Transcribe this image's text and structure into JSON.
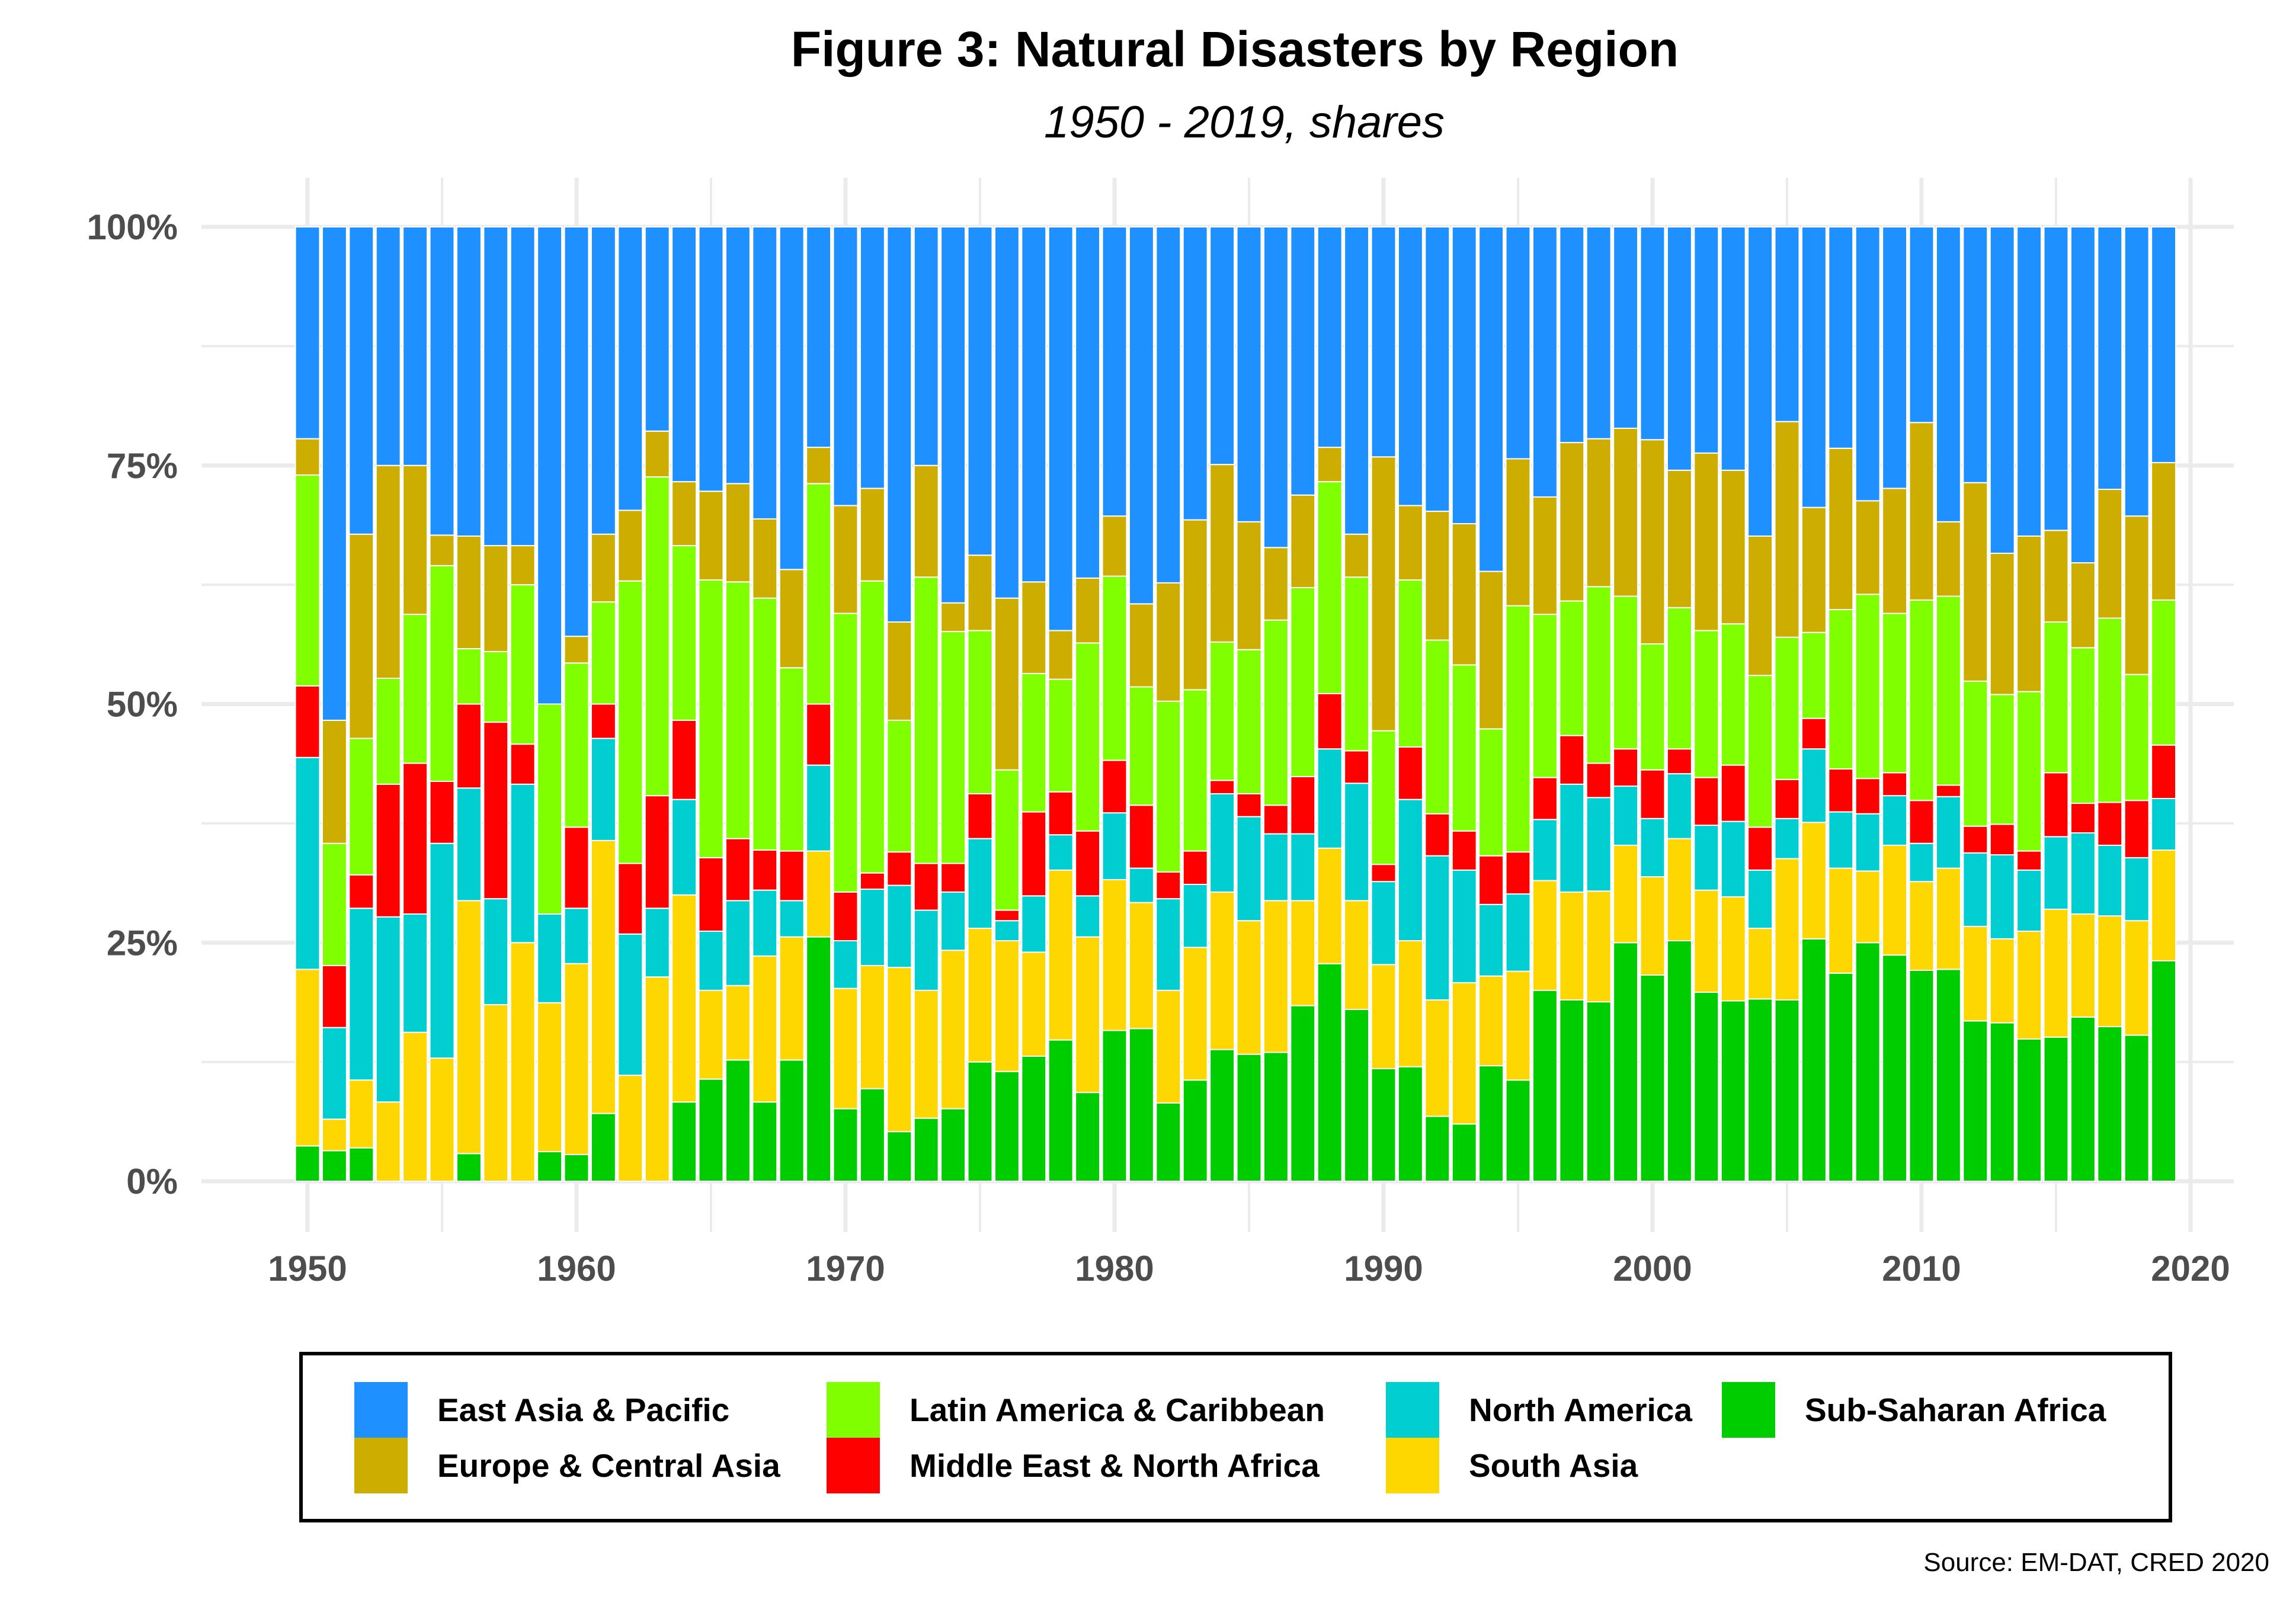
{
  "chart_data": {
    "type": "bar",
    "stacked": true,
    "normalized": true,
    "title": "Figure 3: Natural Disasters by Region",
    "subtitle": "1950 - 2019, shares",
    "xlabel": "",
    "ylabel": "",
    "ylim": [
      0,
      100
    ],
    "xlim": [
      1950,
      2020
    ],
    "x_ticks": [
      "1950",
      "1960",
      "1970",
      "1980",
      "1990",
      "2000",
      "2010",
      "2020"
    ],
    "y_ticks": [
      "0%",
      "25%",
      "50%",
      "75%",
      "100%"
    ],
    "grid": true,
    "legend_position": "bottom",
    "source": "Source: EM-DAT, CRED 2020",
    "legend_order": [
      "East Asia & Pacific",
      "Europe & Central Asia",
      "Latin America & Caribbean",
      "Middle East & North Africa",
      "North America",
      "South Asia",
      "Sub-Saharan Africa"
    ],
    "x": [
      1950,
      1951,
      1952,
      1953,
      1954,
      1955,
      1956,
      1957,
      1958,
      1959,
      1960,
      1961,
      1962,
      1963,
      1964,
      1965,
      1966,
      1967,
      1968,
      1969,
      1970,
      1971,
      1972,
      1973,
      1974,
      1975,
      1976,
      1977,
      1978,
      1979,
      1980,
      1981,
      1982,
      1983,
      1984,
      1985,
      1986,
      1987,
      1988,
      1989,
      1990,
      1991,
      1992,
      1993,
      1994,
      1995,
      1996,
      1997,
      1998,
      1999,
      2000,
      2001,
      2002,
      2003,
      2004,
      2005,
      2006,
      2007,
      2008,
      2009,
      2010,
      2011,
      2012,
      2013,
      2014,
      2015,
      2016,
      2017,
      2018,
      2019
    ],
    "series_stack_order_bottom_to_top": [
      "Sub-Saharan Africa",
      "South Asia",
      "North America",
      "Middle East & North Africa",
      "Latin America & Caribbean",
      "Europe & Central Asia",
      "East Asia & Pacific"
    ],
    "series": [
      {
        "name": "Sub-Saharan Africa",
        "color": "#00CD00",
        "values": [
          3.7,
          3.2,
          3.5,
          0,
          0,
          0,
          2.9,
          0,
          0,
          3.1,
          2.8,
          7.1,
          0,
          0,
          8.3,
          10.7,
          12.7,
          8.3,
          12.7,
          25.6,
          7.6,
          9.7,
          5.2,
          6.6,
          7.6,
          12.5,
          11.5,
          13.1,
          14.8,
          9.3,
          15.8,
          16.0,
          8.2,
          10.6,
          13.8,
          13.3,
          13.5,
          18.4,
          22.8,
          18.0,
          11.8,
          12.0,
          6.8,
          6.0,
          12.1,
          10.6,
          20.0,
          19.0,
          18.8,
          25.0,
          21.6,
          25.2,
          19.8,
          18.9,
          19.1,
          19.0,
          25.4,
          21.8,
          25.0,
          23.7,
          22.1,
          22.2,
          16.8,
          16.6,
          14.9,
          15.1,
          17.2,
          16.2,
          15.3,
          23.1
        ]
      },
      {
        "name": "South Asia",
        "color": "#FFD700",
        "values": [
          18.5,
          3.3,
          7.1,
          8.3,
          15.6,
          12.9,
          26.5,
          18.5,
          25.0,
          15.6,
          20.0,
          28.6,
          11.1,
          21.4,
          21.7,
          9.3,
          7.8,
          15.3,
          12.9,
          9.0,
          12.6,
          12.9,
          17.2,
          13.4,
          16.6,
          14.0,
          13.7,
          10.9,
          17.8,
          16.3,
          15.8,
          13.2,
          11.8,
          13.9,
          16.5,
          14.0,
          15.9,
          11.0,
          12.1,
          11.4,
          10.9,
          13.2,
          12.2,
          14.8,
          9.4,
          11.4,
          11.5,
          11.3,
          11.6,
          10.2,
          10.3,
          10.7,
          10.7,
          10.9,
          7.4,
          14.8,
          12.2,
          11.0,
          7.5,
          11.5,
          9.3,
          10.6,
          9.9,
          8.8,
          11.3,
          13.4,
          10.8,
          11.6,
          12.0,
          11.6
        ]
      },
      {
        "name": "North America",
        "color": "#00CED1",
        "values": [
          22.2,
          9.6,
          18.0,
          19.4,
          12.4,
          22.5,
          11.8,
          11.1,
          16.6,
          9.3,
          5.8,
          10.7,
          14.8,
          7.2,
          10.0,
          6.2,
          8.9,
          6.9,
          3.8,
          9.0,
          5.0,
          8.0,
          8.6,
          8.4,
          6.1,
          9.4,
          2.1,
          5.9,
          3.7,
          4.3,
          7.0,
          3.6,
          9.6,
          6.6,
          10.3,
          10.9,
          7.0,
          7.0,
          10.4,
          12.3,
          8.7,
          14.8,
          15.1,
          11.8,
          7.5,
          8.1,
          6.4,
          11.3,
          9.8,
          6.2,
          6.1,
          6.8,
          6.8,
          7.9,
          6.1,
          4.2,
          7.7,
          5.9,
          6.0,
          5.2,
          4.0,
          7.5,
          7.7,
          8.8,
          6.4,
          7.6,
          8.5,
          7.4,
          6.6,
          5.4
        ]
      },
      {
        "name": "Middle East & North Africa",
        "color": "#FF0000",
        "values": [
          7.5,
          6.5,
          3.5,
          13.9,
          15.8,
          6.5,
          8.8,
          18.5,
          4.2,
          0,
          8.5,
          3.6,
          7.4,
          11.8,
          8.3,
          7.7,
          6.5,
          4.2,
          5.2,
          6.4,
          5.1,
          1.7,
          3.5,
          4.9,
          3.0,
          4.7,
          1.1,
          8.8,
          4.5,
          6.8,
          5.5,
          6.6,
          2.8,
          3.5,
          1.4,
          2.4,
          3.0,
          6.0,
          5.8,
          3.4,
          1.8,
          5.5,
          4.4,
          4.1,
          5.1,
          4.4,
          4.4,
          5.1,
          3.6,
          3.9,
          5.1,
          2.6,
          5.0,
          5.9,
          4.5,
          4.1,
          3.2,
          4.5,
          3.7,
          2.4,
          4.5,
          1.2,
          2.8,
          3.2,
          2.0,
          6.7,
          3.1,
          4.5,
          6.0,
          5.6
        ]
      },
      {
        "name": "Latin America & Caribbean",
        "color": "#7FFF00",
        "values": [
          22.1,
          12.8,
          14.3,
          11.1,
          15.6,
          22.6,
          5.8,
          7.4,
          16.7,
          22.0,
          17.2,
          10.7,
          29.6,
          33.4,
          18.3,
          29.1,
          26.9,
          26.4,
          19.2,
          23.1,
          29.2,
          30.6,
          13.8,
          30.0,
          24.3,
          17.1,
          14.7,
          14.5,
          11.8,
          19.7,
          19.3,
          12.4,
          17.9,
          16.9,
          14.5,
          15.1,
          19.4,
          19.8,
          22.2,
          18.2,
          14.0,
          17.5,
          18.2,
          17.4,
          13.3,
          25.8,
          17.1,
          14.1,
          18.5,
          16.0,
          13.2,
          14.8,
          15.4,
          14.8,
          15.9,
          14.9,
          9.0,
          16.7,
          19.3,
          16.7,
          21.0,
          19.8,
          15.2,
          13.6,
          16.7,
          15.8,
          16.3,
          19.3,
          13.2,
          15.2
        ]
      },
      {
        "name": "Europe & Central Asia",
        "color": "#CDAD00",
        "values": [
          3.8,
          12.9,
          21.4,
          22.3,
          15.6,
          3.2,
          11.8,
          11.1,
          4.1,
          0,
          2.8,
          7.1,
          7.4,
          4.8,
          6.7,
          9.3,
          10.3,
          8.3,
          10.3,
          3.8,
          11.3,
          9.7,
          10.3,
          11.7,
          3.0,
          7.9,
          18.0,
          9.6,
          5.1,
          6.8,
          6.3,
          8.7,
          12.4,
          17.8,
          18.6,
          13.4,
          7.6,
          9.7,
          3.6,
          4.5,
          28.7,
          7.8,
          13.5,
          14.8,
          16.5,
          15.4,
          12.3,
          16.6,
          15.5,
          17.6,
          21.4,
          14.4,
          18.6,
          16.1,
          14.6,
          22.6,
          13.1,
          16.9,
          9.8,
          13.1,
          18.6,
          7.8,
          20.8,
          14.8,
          16.3,
          9.6,
          8.9,
          13.5,
          16.6,
          14.4
        ]
      },
      {
        "name": "East Asia & Pacific",
        "color": "#1E90FF",
        "values": [
          22.2,
          51.7,
          32.2,
          25.0,
          25.0,
          32.3,
          32.4,
          33.4,
          33.4,
          50.0,
          42.9,
          32.2,
          29.7,
          21.4,
          26.7,
          27.7,
          26.9,
          30.6,
          35.9,
          23.1,
          29.2,
          27.4,
          41.4,
          25.0,
          39.4,
          34.4,
          38.9,
          37.2,
          42.3,
          36.8,
          30.3,
          39.5,
          37.3,
          30.7,
          24.9,
          30.9,
          33.6,
          28.1,
          23.1,
          32.2,
          24.1,
          29.2,
          29.8,
          31.1,
          36.1,
          24.3,
          28.3,
          22.6,
          22.2,
          21.1,
          22.3,
          25.5,
          23.7,
          25.5,
          32.4,
          20.4,
          29.4,
          23.2,
          28.7,
          27.4,
          20.5,
          30.9,
          26.8,
          34.2,
          32.4,
          31.8,
          35.2,
          27.5,
          30.3,
          24.7
        ]
      }
    ]
  }
}
